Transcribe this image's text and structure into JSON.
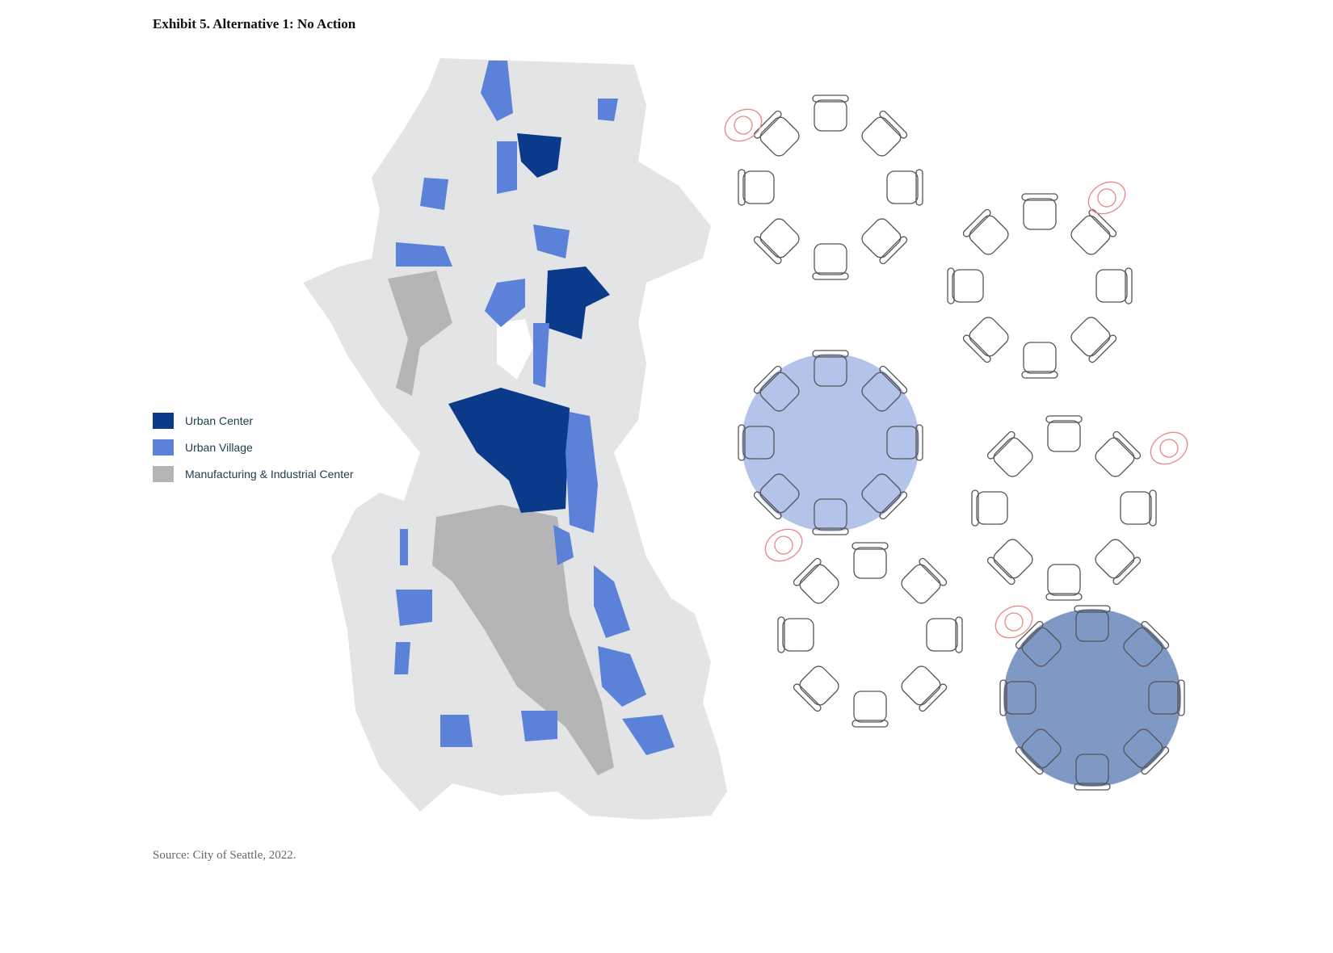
{
  "header": {
    "title": "Exhibit 5. Alternative 1: No Action"
  },
  "legend": {
    "items": [
      "Urban Center",
      "Urban Village",
      "Manufacturing & Industrial Center"
    ]
  },
  "footer": {
    "source": "Source: City of Seattle, 2022."
  }
}
